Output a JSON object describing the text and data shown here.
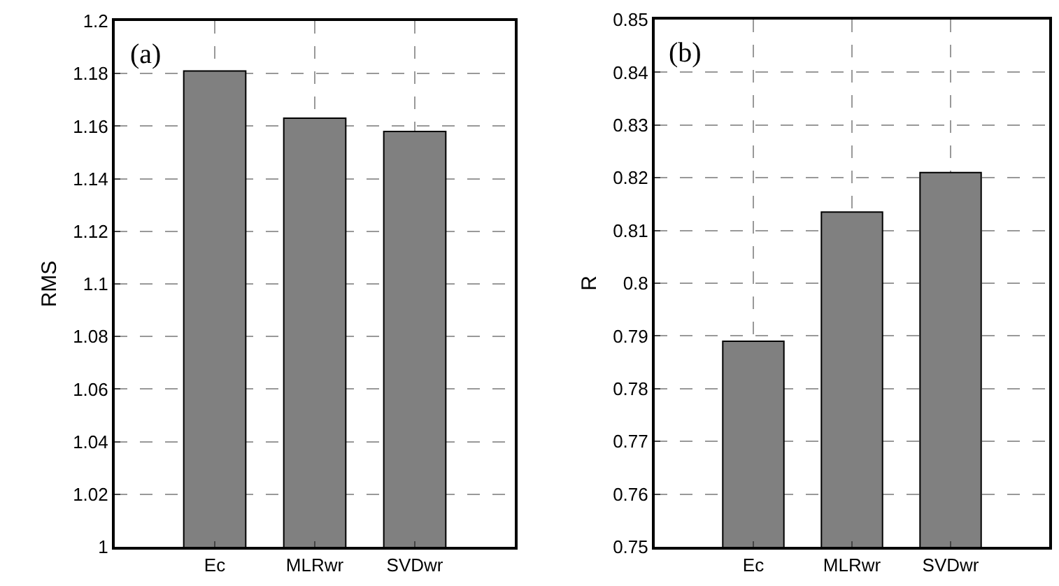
{
  "chart_data": [
    {
      "type": "bar",
      "categories": [
        "Ec",
        "MLRwr",
        "SVDwr"
      ],
      "values": [
        1.181,
        1.163,
        1.158
      ],
      "color": "#808080",
      "ylabel": "RMS",
      "ylim": [
        1,
        1.2
      ],
      "yticks": [
        1,
        1.02,
        1.04,
        1.06,
        1.08,
        1.1,
        1.12,
        1.14,
        1.16,
        1.18,
        1.2
      ],
      "grid": true,
      "annotations": [
        "(a)"
      ]
    },
    {
      "type": "bar",
      "categories": [
        "Ec",
        "MLRwr",
        "SVDwr"
      ],
      "values": [
        0.789,
        0.8135,
        0.821
      ],
      "color": "#808080",
      "ylabel": "R",
      "ylim": [
        0.75,
        0.85
      ],
      "yticks": [
        0.75,
        0.76,
        0.77,
        0.78,
        0.79,
        0.8,
        0.81,
        0.82,
        0.83,
        0.84,
        0.85
      ],
      "grid": true,
      "annotations": [
        "(b)"
      ]
    }
  ]
}
